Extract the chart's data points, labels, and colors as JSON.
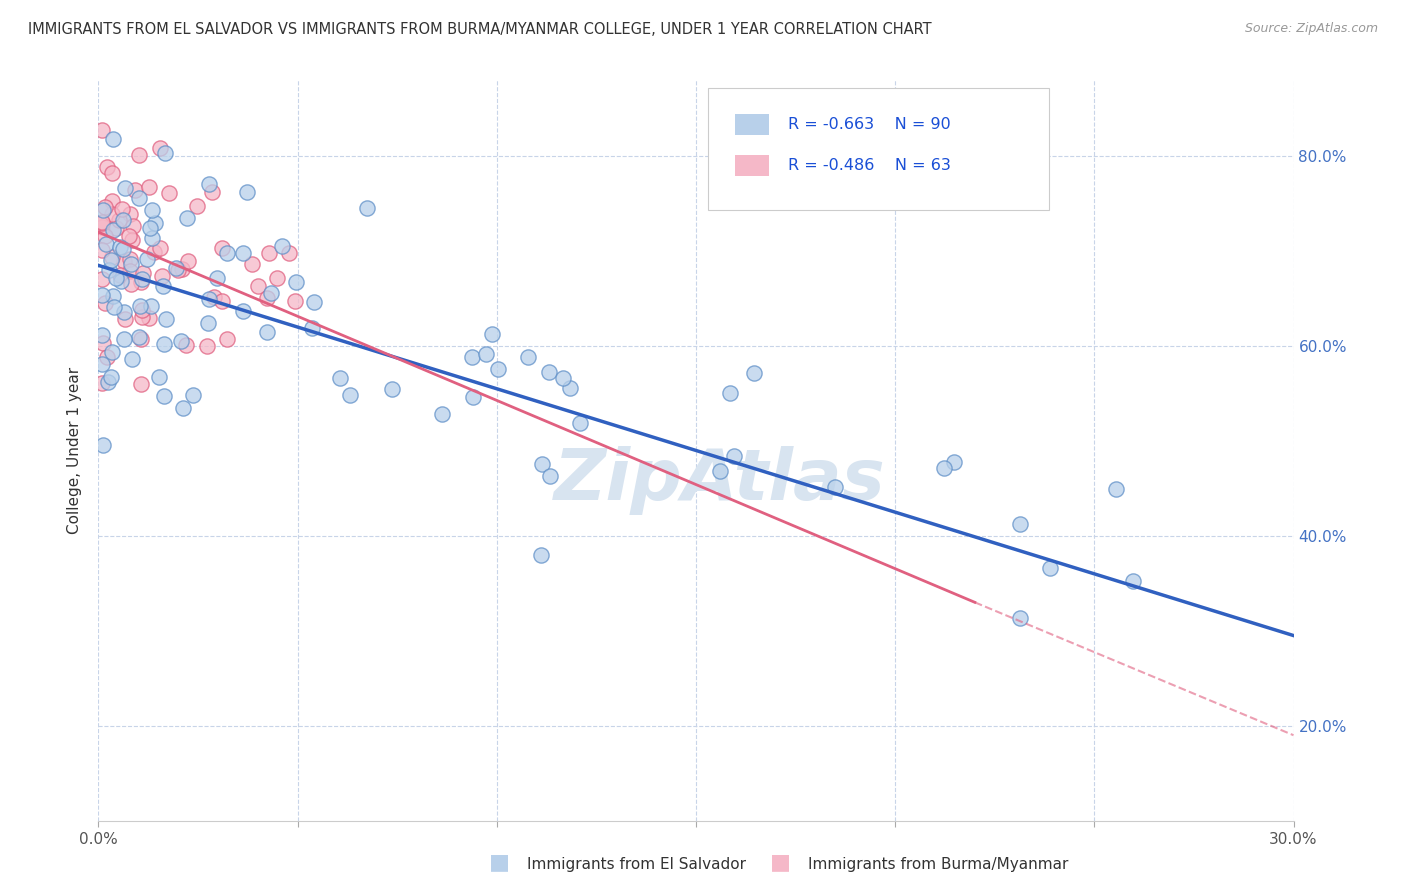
{
  "title": "IMMIGRANTS FROM EL SALVADOR VS IMMIGRANTS FROM BURMA/MYANMAR COLLEGE, UNDER 1 YEAR CORRELATION CHART",
  "source": "Source: ZipAtlas.com",
  "ylabel": "College, Under 1 year",
  "legend_label_1": "Immigrants from El Salvador",
  "legend_label_2": "Immigrants from Burma/Myanmar",
  "R1": -0.663,
  "N1": 90,
  "R2": -0.486,
  "N2": 63,
  "color1_face": "#b8d0ea",
  "color1_edge": "#6090c8",
  "color2_face": "#f5b8c8",
  "color2_edge": "#e06080",
  "line_color1": "#3060c0",
  "line_color2": "#e06080",
  "background_color": "#ffffff",
  "grid_color": "#c8d4e8",
  "watermark": "ZipAtlas",
  "watermark_color": "#d8e4f0",
  "xlim": [
    0.0,
    0.3
  ],
  "ylim": [
    0.1,
    0.88
  ],
  "xtick_positions": [
    0.0,
    0.05,
    0.1,
    0.15,
    0.2,
    0.25,
    0.3
  ],
  "ytick_positions": [
    0.2,
    0.4,
    0.6,
    0.8
  ],
  "yaxis_right_labels": [
    "20.0%",
    "40.0%",
    "60.0%",
    "80.0%"
  ],
  "blue_line_x0": 0.0,
  "blue_line_y0": 0.685,
  "blue_line_x1": 0.3,
  "blue_line_y1": 0.295,
  "pink_line_x0": 0.0,
  "pink_line_y0": 0.72,
  "pink_line_x1": 0.22,
  "pink_line_y1": 0.33,
  "pink_line_dash_x0": 0.22,
  "pink_line_dash_y0": 0.33,
  "pink_line_dash_x1": 0.3,
  "pink_line_dash_y1": 0.19,
  "seed_blue": 42,
  "seed_pink": 17
}
